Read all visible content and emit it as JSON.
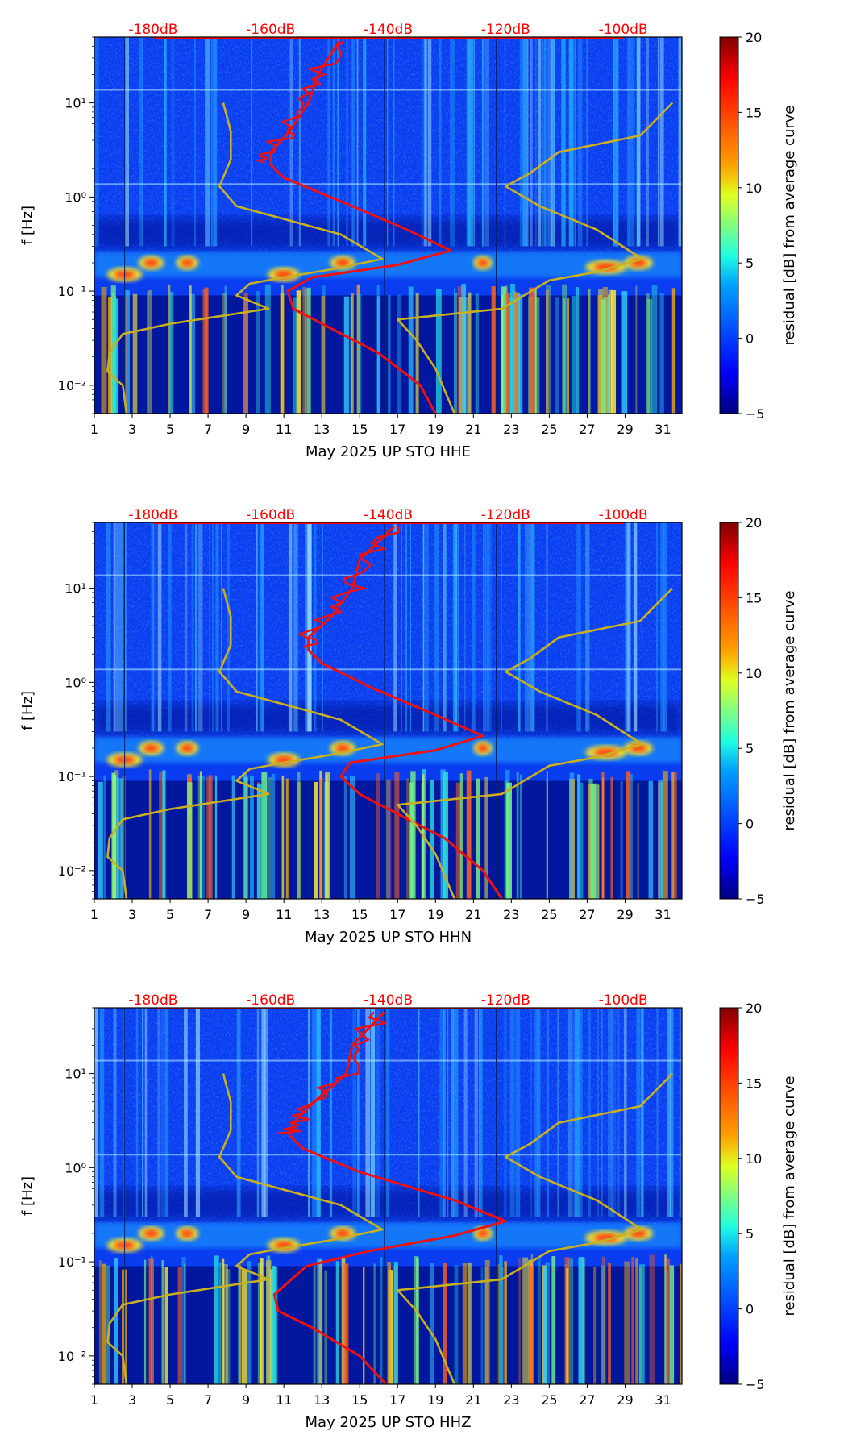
{
  "colors": {
    "psd_curve": "#ee1111",
    "model_curve": "#c8b020",
    "db_label": "#ff0000",
    "colormap": [
      "#00007f",
      "#0000ff",
      "#0080ff",
      "#00ffff",
      "#80ff80",
      "#ffff00",
      "#ff8000",
      "#ff0000",
      "#7f0000"
    ]
  },
  "chart_data": [
    {
      "type": "heatmap",
      "component": "HHE",
      "xlabel": "May 2025 UP STO  HHE",
      "ylabel": "f [Hz]",
      "x_ticks": [
        "1",
        "3",
        "5",
        "7",
        "9",
        "11",
        "13",
        "15",
        "17",
        "19",
        "21",
        "23",
        "25",
        "27",
        "29",
        "31"
      ],
      "xlim": [
        1,
        32
      ],
      "ylim_hz": [
        0.005,
        50
      ],
      "y_ticks": [
        "10⁻²",
        "10⁻¹",
        "10⁰",
        "10¹"
      ],
      "db_axis": {
        "labels": [
          "-180dB",
          "-160dB",
          "-140dB",
          "-120dB",
          "-100dB"
        ],
        "x_positions_day": [
          4.1,
          10.3,
          16.5,
          22.7,
          28.9
        ]
      },
      "colorbar": {
        "label": "residual [dB] from average curve",
        "range": [
          -5,
          20
        ],
        "ticks": [
          "-5",
          "0",
          "5",
          "10",
          "15",
          "20"
        ]
      },
      "series": [
        {
          "name": "observed PSD (red)",
          "points_day_hz": [
            [
              13.9,
              45
            ],
            [
              12.8,
              20
            ],
            [
              12.3,
              10
            ],
            [
              11.3,
              5
            ],
            [
              10.3,
              3
            ],
            [
              10.3,
              2.2
            ],
            [
              11,
              1.6
            ],
            [
              14,
              0.9
            ],
            [
              17.5,
              0.45
            ],
            [
              19.8,
              0.27
            ],
            [
              17,
              0.19
            ],
            [
              12.5,
              0.14
            ],
            [
              11.2,
              0.1
            ],
            [
              11.5,
              0.065
            ],
            [
              13.5,
              0.04
            ],
            [
              16,
              0.022
            ],
            [
              18.2,
              0.01
            ],
            [
              19,
              0.005
            ]
          ]
        },
        {
          "name": "noise model (yellow)",
          "points_day_hz": [
            [
              7.8,
              10
            ],
            [
              8.2,
              5
            ],
            [
              8.2,
              2.5
            ],
            [
              7.6,
              1.3
            ],
            [
              8.5,
              0.8
            ],
            [
              14,
              0.4
            ],
            [
              16.2,
              0.22
            ],
            [
              13.5,
              0.17
            ],
            [
              11,
              0.14
            ],
            [
              9.2,
              0.12
            ],
            [
              8.5,
              0.09
            ],
            [
              10.2,
              0.065
            ],
            [
              5,
              0.045
            ],
            [
              2.5,
              0.035
            ],
            [
              1.8,
              0.022
            ],
            [
              1.7,
              0.014
            ],
            [
              2.5,
              0.01
            ],
            [
              2.7,
              0.005
            ]
          ]
        },
        {
          "name": "noise model (yellow)",
          "points_day_hz": [
            [
              31.5,
              10
            ],
            [
              29.8,
              4.5
            ],
            [
              25.5,
              3
            ],
            [
              24,
              1.8
            ],
            [
              22.7,
              1.3
            ],
            [
              24.5,
              0.8
            ],
            [
              27.5,
              0.45
            ],
            [
              29.9,
              0.22
            ],
            [
              27.5,
              0.16
            ],
            [
              25,
              0.13
            ],
            [
              22.5,
              0.065
            ],
            [
              17,
              0.05
            ],
            [
              18,
              0.03
            ],
            [
              19,
              0.015
            ],
            [
              20,
              0.005
            ]
          ]
        }
      ]
    },
    {
      "type": "heatmap",
      "component": "HHN",
      "xlabel": "May 2025 UP STO  HHN",
      "ylabel": "f [Hz]",
      "x_ticks": [
        "1",
        "3",
        "5",
        "7",
        "9",
        "11",
        "13",
        "15",
        "17",
        "19",
        "21",
        "23",
        "25",
        "27",
        "29",
        "31"
      ],
      "xlim": [
        1,
        32
      ],
      "ylim_hz": [
        0.005,
        50
      ],
      "y_ticks": [
        "10⁻²",
        "10⁻¹",
        "10⁰",
        "10¹"
      ],
      "db_axis": {
        "labels": [
          "-180dB",
          "-160dB",
          "-140dB",
          "-120dB",
          "-100dB"
        ],
        "x_positions_day": [
          4.1,
          10.3,
          16.5,
          22.7,
          28.9
        ]
      },
      "colorbar": {
        "label": "residual [dB] from average curve",
        "range": [
          -5,
          20
        ],
        "ticks": [
          "-5",
          "0",
          "5",
          "10",
          "15",
          "20"
        ]
      },
      "series": [
        {
          "name": "observed PSD (red)",
          "points_day_hz": [
            [
              16.8,
              45
            ],
            [
              15,
              20
            ],
            [
              14.6,
              10
            ],
            [
              13.5,
              5
            ],
            [
              12.3,
              3
            ],
            [
              12.3,
              2.2
            ],
            [
              13,
              1.6
            ],
            [
              15.5,
              0.9
            ],
            [
              19,
              0.45
            ],
            [
              21.5,
              0.27
            ],
            [
              19,
              0.19
            ],
            [
              14.5,
              0.14
            ],
            [
              14,
              0.1
            ],
            [
              15,
              0.065
            ],
            [
              17,
              0.04
            ],
            [
              19.5,
              0.022
            ],
            [
              21.5,
              0.01
            ],
            [
              22.5,
              0.005
            ]
          ]
        },
        {
          "name": "noise model (yellow)",
          "points_day_hz": [
            [
              7.8,
              10
            ],
            [
              8.2,
              5
            ],
            [
              8.2,
              2.5
            ],
            [
              7.6,
              1.3
            ],
            [
              8.5,
              0.8
            ],
            [
              14,
              0.4
            ],
            [
              16.2,
              0.22
            ],
            [
              13.5,
              0.17
            ],
            [
              11,
              0.14
            ],
            [
              9.2,
              0.12
            ],
            [
              8.5,
              0.09
            ],
            [
              10.2,
              0.065
            ],
            [
              5,
              0.045
            ],
            [
              2.5,
              0.035
            ],
            [
              1.8,
              0.022
            ],
            [
              1.7,
              0.014
            ],
            [
              2.5,
              0.01
            ],
            [
              2.7,
              0.005
            ]
          ]
        },
        {
          "name": "noise model (yellow)",
          "points_day_hz": [
            [
              31.5,
              10
            ],
            [
              29.8,
              4.5
            ],
            [
              25.5,
              3
            ],
            [
              24,
              1.8
            ],
            [
              22.7,
              1.3
            ],
            [
              24.5,
              0.8
            ],
            [
              27.5,
              0.45
            ],
            [
              29.9,
              0.22
            ],
            [
              27.5,
              0.16
            ],
            [
              25,
              0.13
            ],
            [
              22.5,
              0.065
            ],
            [
              17,
              0.05
            ],
            [
              18,
              0.03
            ],
            [
              19,
              0.015
            ],
            [
              20,
              0.005
            ]
          ]
        }
      ]
    },
    {
      "type": "heatmap",
      "component": "HHZ",
      "xlabel": "May 2025 UP STO  HHZ",
      "ylabel": "f [Hz]",
      "x_ticks": [
        "1",
        "3",
        "5",
        "7",
        "9",
        "11",
        "13",
        "15",
        "17",
        "19",
        "21",
        "23",
        "25",
        "27",
        "29",
        "31"
      ],
      "xlim": [
        1,
        32
      ],
      "ylim_hz": [
        0.005,
        50
      ],
      "y_ticks": [
        "10⁻²",
        "10⁻¹",
        "10⁰",
        "10¹"
      ],
      "db_axis": {
        "labels": [
          "-180dB",
          "-160dB",
          "-140dB",
          "-120dB",
          "-100dB"
        ],
        "x_positions_day": [
          4.1,
          10.3,
          16.5,
          22.7,
          28.9
        ]
      },
      "colorbar": {
        "label": "residual [dB] from average curve",
        "range": [
          -5,
          20
        ],
        "ticks": [
          "-5",
          "0",
          "5",
          "10",
          "15",
          "20"
        ]
      },
      "series": [
        {
          "name": "observed PSD (red)",
          "points_day_hz": [
            [
              16.3,
              45
            ],
            [
              14.6,
              20
            ],
            [
              14.3,
              10
            ],
            [
              12.6,
              5
            ],
            [
              11.5,
              3
            ],
            [
              11.3,
              2.2
            ],
            [
              12,
              1.6
            ],
            [
              15,
              0.9
            ],
            [
              20,
              0.45
            ],
            [
              22.7,
              0.27
            ],
            [
              20,
              0.19
            ],
            [
              15.5,
              0.13
            ],
            [
              12.2,
              0.09
            ],
            [
              10.5,
              0.045
            ],
            [
              10.7,
              0.03
            ],
            [
              12.5,
              0.02
            ],
            [
              15,
              0.01
            ],
            [
              16.4,
              0.005
            ]
          ]
        },
        {
          "name": "noise model (yellow)",
          "points_day_hz": [
            [
              7.8,
              10
            ],
            [
              8.2,
              5
            ],
            [
              8.2,
              2.5
            ],
            [
              7.6,
              1.3
            ],
            [
              8.5,
              0.8
            ],
            [
              14,
              0.4
            ],
            [
              16.2,
              0.22
            ],
            [
              13.5,
              0.17
            ],
            [
              11,
              0.14
            ],
            [
              9.2,
              0.12
            ],
            [
              8.5,
              0.09
            ],
            [
              10.2,
              0.065
            ],
            [
              5,
              0.045
            ],
            [
              2.5,
              0.035
            ],
            [
              1.8,
              0.022
            ],
            [
              1.7,
              0.014
            ],
            [
              2.5,
              0.01
            ],
            [
              2.7,
              0.005
            ]
          ]
        },
        {
          "name": "noise model (yellow)",
          "points_day_hz": [
            [
              31.5,
              10
            ],
            [
              29.8,
              4.5
            ],
            [
              25.5,
              3
            ],
            [
              24,
              1.8
            ],
            [
              22.7,
              1.3
            ],
            [
              24.5,
              0.8
            ],
            [
              27.5,
              0.45
            ],
            [
              29.9,
              0.22
            ],
            [
              27.5,
              0.16
            ],
            [
              25,
              0.13
            ],
            [
              22.5,
              0.065
            ],
            [
              17,
              0.05
            ],
            [
              18,
              0.03
            ],
            [
              19,
              0.015
            ],
            [
              20,
              0.005
            ]
          ]
        }
      ]
    }
  ]
}
